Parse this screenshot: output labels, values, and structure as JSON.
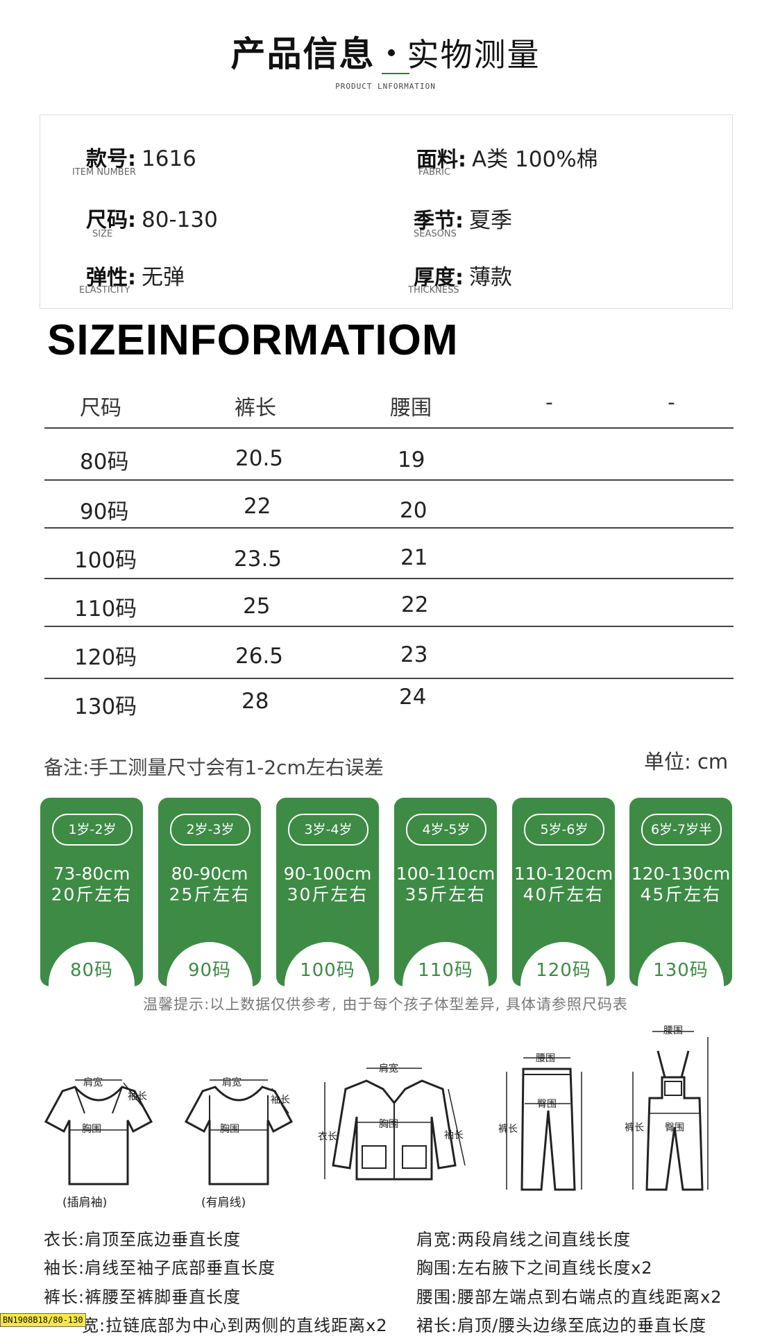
{
  "header": {
    "title": "产品信息",
    "subtitle": "实物测量",
    "english": "PRODUCT LNFORMATION"
  },
  "info": [
    {
      "key": "款号:",
      "value": "1616",
      "en": "ITEM NUMBER"
    },
    {
      "key": "面料:",
      "value": "A类  100%棉",
      "en": "FABRIC"
    },
    {
      "key": "尺码:",
      "value": "80-130",
      "en": "SIZE"
    },
    {
      "key": "季节:",
      "value": "夏季",
      "en": "SEASONS"
    },
    {
      "key": "弹性:",
      "value": "无弹",
      "en": "ELASTICITY"
    },
    {
      "key": "厚度:",
      "value": "薄款",
      "en": "THICKNESS"
    }
  ],
  "size_heading": "SIZEINFORMATIOM",
  "table": {
    "headers": [
      "尺码",
      "裤长",
      "腰围",
      "-",
      "-"
    ],
    "rows": [
      [
        "80码",
        "20.5",
        "19"
      ],
      [
        "90码",
        "22",
        "20"
      ],
      [
        "100码",
        "23.5",
        "21"
      ],
      [
        "110码",
        "25",
        "22"
      ],
      [
        "120码",
        "26.5",
        "23"
      ],
      [
        "130码",
        "28",
        "24"
      ]
    ]
  },
  "note": "备注:手工测量尺寸会有1-2cm左右误差",
  "unit": "单位: cm",
  "cards": [
    {
      "age": "1岁-2岁",
      "height": "73-80cm",
      "weight": "20斤左右",
      "size": "80码"
    },
    {
      "age": "2岁-3岁",
      "height": "80-90cm",
      "weight": "25斤左右",
      "size": "90码"
    },
    {
      "age": "3岁-4岁",
      "height": "90-100cm",
      "weight": "30斤左右",
      "size": "100码"
    },
    {
      "age": "4岁-5岁",
      "height": "100-110cm",
      "weight": "35斤左右",
      "size": "110码"
    },
    {
      "age": "5岁-6岁",
      "height": "110-120cm",
      "weight": "40斤左右",
      "size": "120码"
    },
    {
      "age": "6岁-7岁半",
      "height": "120-130cm",
      "weight": "45斤左右",
      "size": "130码"
    }
  ],
  "tip": "温馨提示:以上数据仅供参考, 由于每个孩子体型差异, 具体请参照尺码表",
  "diagrams": {
    "shoulder": "肩宽",
    "sleeve": "袖长",
    "chest": "胸围",
    "length": "衣长",
    "waist": "腰围",
    "hip": "臀围",
    "pants": "裤长",
    "raglan": "(插肩袖)",
    "seam": "(有肩线)"
  },
  "definitions": [
    {
      "left": "衣长:肩顶至底边垂直长度",
      "right": "肩宽:两段肩线之间直线长度"
    },
    {
      "left": "袖长:肩线至袖子底部垂直长度",
      "right": "胸围:左右腋下之间直线长度x2"
    },
    {
      "left": "裤长:裤腰至裤脚垂直长度",
      "right": "腰围:腰部左端点到右端点的直线距离x2"
    },
    {
      "left": "宽:拉链底部为中心到两侧的直线距离x2",
      "right": "裙长:肩顶/腰头边缘至底边的垂直长度"
    }
  ],
  "stamp": "BN1908B18/80-130"
}
